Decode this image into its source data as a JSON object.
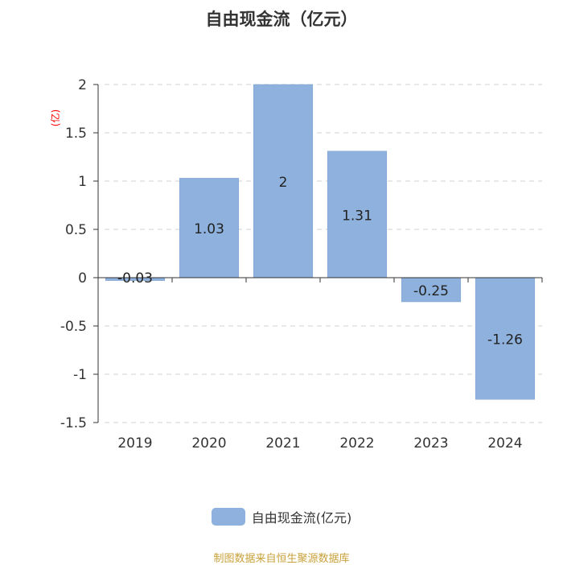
{
  "chart_data": {
    "type": "bar",
    "title": "自由现金流（亿元）",
    "y_unit": "(亿)",
    "categories": [
      "2019",
      "2020",
      "2021",
      "2022",
      "2023",
      "2024"
    ],
    "series": [
      {
        "name": "自由现金流(亿元)",
        "values": [
          -0.03,
          1.03,
          2,
          1.31,
          -0.25,
          -1.26
        ],
        "labels": [
          "-0.03",
          "1.03",
          "2",
          "1.31",
          "-0.25",
          "-1.26"
        ]
      }
    ],
    "ylim": [
      -1.5,
      2
    ],
    "yticks": [
      2,
      1.5,
      1,
      0.5,
      0,
      -0.5,
      -1,
      -1.5
    ],
    "ytick_labels": [
      "2",
      "1.5",
      "1",
      "0.5",
      "0",
      "-0.5",
      "-1",
      "-1.5"
    ],
    "grid": true,
    "legend_position": "bottom-center",
    "colors": {
      "bar": "#8eb1dd",
      "bar_edge": "#7a9fce",
      "grid": "#d0d0d0",
      "axis": "#333333",
      "y_unit": "#ff0000",
      "source": "#c9a13a"
    }
  },
  "source_note": "制图数据来自恒生聚源数据库"
}
